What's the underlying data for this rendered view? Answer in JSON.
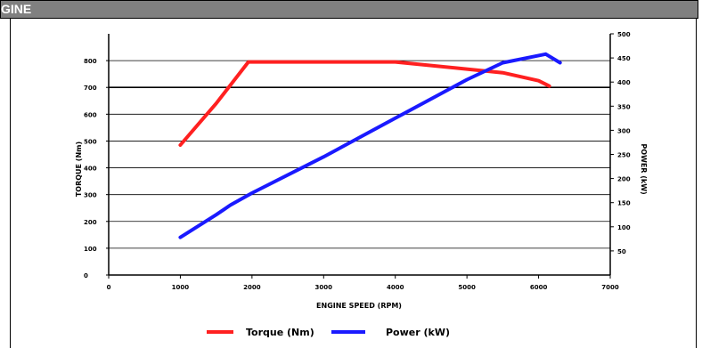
{
  "header": {
    "title": "GINE"
  },
  "colors": {
    "header_bg": "#808080",
    "torque": "#ff2020",
    "power": "#1a1aff"
  },
  "chart_data": {
    "type": "line",
    "xlabel": "ENGINE SPEED (RPM)",
    "ylabel": "TORQUE (Nm)",
    "y2label": "POWER (kW)",
    "xlim": [
      0,
      7000
    ],
    "ylim": [
      0,
      900
    ],
    "y2lim": [
      0,
      500
    ],
    "x_ticks": [
      "0",
      "1000",
      "2000",
      "3000",
      "4000",
      "5000",
      "6000",
      "7000"
    ],
    "y_ticks": [
      "0",
      "100",
      "200",
      "300",
      "400",
      "500",
      "600",
      "700",
      "800"
    ],
    "y2_ticks": [
      "50",
      "100",
      "150",
      "200",
      "250",
      "300",
      "350",
      "400",
      "450",
      "500"
    ],
    "grid": true,
    "legend_position": "bottom",
    "series": [
      {
        "name": "Torque (Nm)",
        "axis": "left",
        "color": "#ff2020",
        "points": [
          [
            1000,
            485
          ],
          [
            1500,
            640
          ],
          [
            1950,
            795
          ],
          [
            4000,
            795
          ],
          [
            5500,
            755
          ],
          [
            6000,
            725
          ],
          [
            6150,
            705
          ]
        ]
      },
      {
        "name": "Power (kW)",
        "axis": "right",
        "color": "#1a1aff",
        "points": [
          [
            1000,
            78
          ],
          [
            1500,
            125
          ],
          [
            1700,
            145
          ],
          [
            2000,
            170
          ],
          [
            3000,
            245
          ],
          [
            4000,
            325
          ],
          [
            5000,
            405
          ],
          [
            5500,
            440
          ],
          [
            6000,
            455
          ],
          [
            6100,
            458
          ],
          [
            6300,
            440
          ]
        ]
      }
    ]
  }
}
